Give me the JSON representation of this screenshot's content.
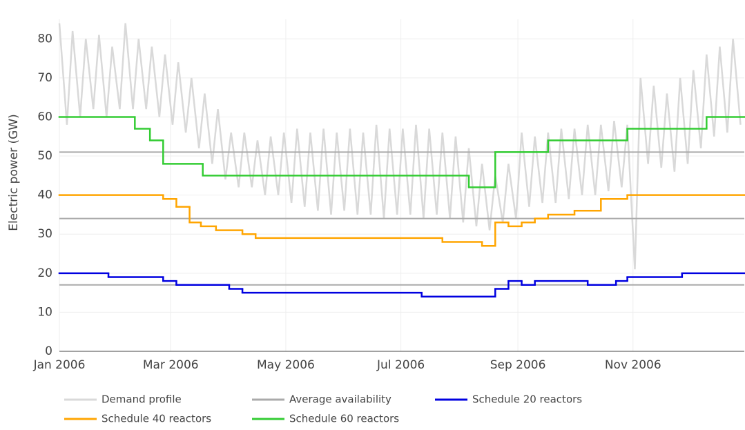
{
  "chart_data": {
    "type": "line",
    "y_label": "Electric power (GW)",
    "xlim": [
      0,
      363
    ],
    "ylim": [
      0,
      85
    ],
    "xticks": [
      {
        "value": 0,
        "label": "Jan 2006"
      },
      {
        "value": 59,
        "label": "Mar 2006"
      },
      {
        "value": 120,
        "label": "May 2006"
      },
      {
        "value": 181,
        "label": "Jul 2006"
      },
      {
        "value": 243,
        "label": "Sep 2006"
      },
      {
        "value": 304,
        "label": "Nov 2006"
      }
    ],
    "yticks": [
      0,
      10,
      20,
      30,
      40,
      50,
      60,
      70,
      80
    ],
    "grid": true,
    "legend": "bottom",
    "series": [
      {
        "name": "Demand profile",
        "color": "#d9d9d9",
        "style": "line",
        "x": [
          0,
          4,
          7,
          11,
          14,
          18,
          21,
          25,
          28,
          32,
          35,
          39,
          42,
          46,
          49,
          53,
          56,
          60,
          63,
          67,
          70,
          74,
          77,
          81,
          84,
          88,
          91,
          95,
          98,
          102,
          105,
          109,
          112,
          116,
          119,
          123,
          126,
          130,
          133,
          137,
          140,
          144,
          147,
          151,
          154,
          158,
          161,
          165,
          168,
          172,
          175,
          179,
          182,
          186,
          189,
          193,
          196,
          200,
          203,
          207,
          210,
          214,
          217,
          221,
          224,
          228,
          231,
          235,
          238,
          242,
          245,
          249,
          252,
          256,
          259,
          263,
          266,
          270,
          273,
          277,
          280,
          284,
          287,
          291,
          294,
          298,
          301,
          305,
          308,
          312,
          315,
          319,
          322,
          326,
          329,
          333,
          336,
          340,
          343,
          347,
          350,
          354,
          357,
          361
        ],
        "values": [
          84,
          58,
          82,
          60,
          80,
          62,
          81,
          60,
          78,
          62,
          84,
          62,
          80,
          62,
          78,
          60,
          76,
          58,
          74,
          56,
          70,
          52,
          66,
          48,
          62,
          44,
          56,
          42,
          56,
          42,
          54,
          40,
          55,
          40,
          56,
          38,
          57,
          37,
          56,
          36,
          57,
          35,
          56,
          36,
          57,
          35,
          56,
          35,
          58,
          34,
          57,
          35,
          57,
          35,
          58,
          34,
          57,
          35,
          56,
          34,
          55,
          33,
          52,
          32,
          48,
          31,
          45,
          33,
          48,
          34,
          56,
          37,
          55,
          38,
          56,
          38,
          57,
          39,
          57,
          40,
          58,
          40,
          58,
          41,
          59,
          42,
          58,
          21,
          70,
          48,
          68,
          47,
          66,
          46,
          70,
          48,
          72,
          52,
          76,
          55,
          78,
          56,
          80,
          58
        ]
      },
      {
        "name": "Average availability",
        "color": "#aaaaaa",
        "style": "levels",
        "levels": [
          51,
          34,
          17
        ]
      },
      {
        "name": "Schedule 20 reactors",
        "color": "#0000e0",
        "style": "step",
        "x": [
          0,
          26,
          55,
          62,
          90,
          97,
          192,
          231,
          238,
          245,
          252,
          280,
          295,
          301,
          330
        ],
        "values": [
          20,
          19,
          18,
          17,
          16,
          15,
          14,
          16,
          18,
          17,
          18,
          17,
          18,
          19,
          20
        ]
      },
      {
        "name": "Schedule 40 reactors",
        "color": "#ffa500",
        "style": "step",
        "x": [
          0,
          55,
          62,
          69,
          75,
          83,
          97,
          104,
          203,
          224,
          231,
          238,
          245,
          252,
          259,
          273,
          287,
          301
        ],
        "values": [
          40,
          39,
          37,
          33,
          32,
          31,
          30,
          29,
          28,
          27,
          33,
          32,
          33,
          34,
          35,
          36,
          39,
          40
        ]
      },
      {
        "name": "Schedule 60 reactors",
        "color": "#33cc33",
        "style": "step",
        "x": [
          0,
          40,
          48,
          55,
          76,
          217,
          231,
          259,
          301,
          343
        ],
        "values": [
          60,
          57,
          54,
          48,
          45,
          42,
          51,
          54,
          57,
          60
        ]
      }
    ]
  }
}
